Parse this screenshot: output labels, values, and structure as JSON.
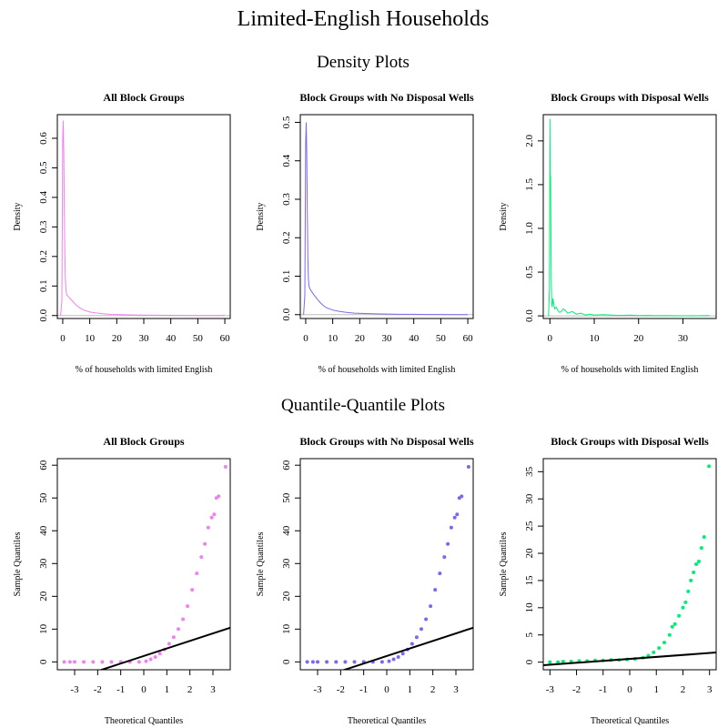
{
  "title": "Limited-English Households",
  "sections": {
    "density": "Density Plots",
    "qq": "Quantile-Quantile Plots"
  },
  "chart_data": [
    {
      "type": "line",
      "kind": "density",
      "title": "All Block Groups",
      "xlabel": "% of households with limited English",
      "ylabel": "Density",
      "color": "#EE82EE",
      "xlim": [
        -2,
        62
      ],
      "ylim": [
        -0.01,
        0.68
      ],
      "xticks": [
        0,
        10,
        20,
        30,
        40,
        50,
        60
      ],
      "yticks": [
        0.0,
        0.1,
        0.2,
        0.3,
        0.4,
        0.5,
        0.6
      ],
      "x": [
        -0.8,
        -0.3,
        0,
        0.2,
        0.4,
        0.6,
        0.8,
        1.0,
        1.2,
        1.5,
        2,
        2.5,
        3,
        4,
        5,
        6,
        7,
        8,
        10,
        12,
        15,
        18,
        22,
        26,
        30,
        35,
        40,
        45,
        50,
        55,
        60
      ],
      "y": [
        0,
        0.05,
        0.6,
        0.66,
        0.55,
        0.35,
        0.2,
        0.12,
        0.085,
        0.07,
        0.065,
        0.06,
        0.055,
        0.045,
        0.035,
        0.028,
        0.022,
        0.018,
        0.012,
        0.009,
        0.006,
        0.004,
        0.003,
        0.002,
        0.0015,
        0.001,
        0.0008,
        0.0005,
        0.0003,
        0.0002,
        0.0001
      ]
    },
    {
      "type": "line",
      "kind": "density",
      "title": "Block Groups with No Disposal Wells",
      "xlabel": "% of households with limited English",
      "ylabel": "Density",
      "color": "#7B68EE",
      "xlim": [
        -2,
        62
      ],
      "ylim": [
        -0.01,
        0.52
      ],
      "xticks": [
        0,
        10,
        20,
        30,
        40,
        50,
        60
      ],
      "yticks": [
        0.0,
        0.1,
        0.2,
        0.3,
        0.4,
        0.5
      ],
      "x": [
        -0.8,
        -0.3,
        0,
        0.2,
        0.4,
        0.6,
        0.8,
        1.0,
        1.2,
        1.5,
        2,
        2.5,
        3,
        4,
        5,
        6,
        7,
        8,
        10,
        12,
        15,
        18,
        22,
        26,
        30,
        35,
        40,
        45,
        50,
        55,
        60
      ],
      "y": [
        0,
        0.05,
        0.45,
        0.5,
        0.42,
        0.27,
        0.15,
        0.095,
        0.075,
        0.068,
        0.062,
        0.057,
        0.052,
        0.043,
        0.034,
        0.027,
        0.021,
        0.017,
        0.012,
        0.009,
        0.006,
        0.004,
        0.003,
        0.002,
        0.0015,
        0.001,
        0.0008,
        0.0005,
        0.0003,
        0.0002,
        0.0001
      ]
    },
    {
      "type": "line",
      "kind": "density",
      "title": "Block Groups with Disposal Wells",
      "xlabel": "% of households with limited English",
      "ylabel": "Density",
      "color": "#00EE76",
      "xlim": [
        -1.5,
        37.5
      ],
      "ylim": [
        -0.03,
        2.3
      ],
      "xticks": [
        0,
        10,
        20,
        30
      ],
      "yticks": [
        0.0,
        0.5,
        1.0,
        1.5,
        2.0
      ],
      "x": [
        -0.3,
        -0.1,
        0,
        0.05,
        0.1,
        0.15,
        0.2,
        0.25,
        0.3,
        0.4,
        0.5,
        0.7,
        0.9,
        1.1,
        1.4,
        1.8,
        2.2,
        2.6,
        3.0,
        3.5,
        4,
        4.5,
        5,
        6,
        7,
        8,
        9,
        10,
        12,
        14,
        16,
        18,
        20,
        22,
        24,
        26,
        30,
        34,
        36
      ],
      "y": [
        0,
        0.3,
        2.25,
        1.6,
        1.45,
        1.6,
        1.2,
        0.8,
        0.4,
        0.15,
        0.1,
        0.2,
        0.12,
        0.08,
        0.1,
        0.06,
        0.04,
        0.05,
        0.08,
        0.06,
        0.03,
        0.04,
        0.05,
        0.02,
        0.03,
        0.01,
        0.02,
        0.01,
        0.015,
        0.01,
        0.005,
        0.01,
        0.003,
        0.005,
        0.002,
        0.003,
        0.001,
        0.002,
        0.004
      ]
    },
    {
      "type": "scatter",
      "kind": "qq",
      "title": "All Block Groups",
      "xlabel": "Theoretical Quantiles",
      "ylabel": "Sample Quantiles",
      "color": "#EE82EE",
      "xlim": [
        -3.75,
        3.75
      ],
      "ylim": [
        -2.4,
        62
      ],
      "xticks": [
        -3,
        -2,
        -1,
        0,
        1,
        2,
        3
      ],
      "yticks": [
        0,
        10,
        20,
        30,
        40,
        50,
        60
      ],
      "qq_line": {
        "intercept": 1.8,
        "slope": 2.3
      },
      "points": [
        [
          -3.45,
          0
        ],
        [
          -3.2,
          0
        ],
        [
          -3.0,
          0
        ],
        [
          -2.6,
          0
        ],
        [
          -2.2,
          0
        ],
        [
          -1.8,
          0
        ],
        [
          -1.4,
          0
        ],
        [
          -1.0,
          0
        ],
        [
          -0.6,
          0
        ],
        [
          -0.2,
          0
        ],
        [
          0.1,
          0.2
        ],
        [
          0.3,
          0.8
        ],
        [
          0.5,
          1.5
        ],
        [
          0.7,
          2.5
        ],
        [
          0.9,
          3.8
        ],
        [
          1.1,
          5.5
        ],
        [
          1.3,
          7.5
        ],
        [
          1.5,
          10
        ],
        [
          1.7,
          13
        ],
        [
          1.9,
          17
        ],
        [
          2.1,
          22
        ],
        [
          2.3,
          27
        ],
        [
          2.5,
          32
        ],
        [
          2.65,
          36
        ],
        [
          2.8,
          41
        ],
        [
          2.95,
          44
        ],
        [
          3.05,
          45
        ],
        [
          3.15,
          50
        ],
        [
          3.25,
          50.5
        ],
        [
          3.55,
          59.5
        ]
      ]
    },
    {
      "type": "scatter",
      "kind": "qq",
      "title": "Block Groups with No Disposal Wells",
      "xlabel": "Theoretical Quantiles",
      "ylabel": "Sample Quantiles",
      "color": "#7B68EE",
      "xlim": [
        -3.75,
        3.75
      ],
      "ylim": [
        -2.4,
        62
      ],
      "xticks": [
        -3,
        -2,
        -1,
        0,
        1,
        2,
        3
      ],
      "yticks": [
        0,
        10,
        20,
        30,
        40,
        50,
        60
      ],
      "qq_line": {
        "intercept": 1.8,
        "slope": 2.3
      },
      "points": [
        [
          -3.45,
          0
        ],
        [
          -3.2,
          0
        ],
        [
          -3.0,
          0
        ],
        [
          -2.6,
          0
        ],
        [
          -2.2,
          0
        ],
        [
          -1.8,
          0
        ],
        [
          -1.4,
          0
        ],
        [
          -1.0,
          0
        ],
        [
          -0.6,
          0
        ],
        [
          -0.2,
          0
        ],
        [
          0.1,
          0.2
        ],
        [
          0.3,
          0.8
        ],
        [
          0.5,
          1.5
        ],
        [
          0.7,
          2.5
        ],
        [
          0.9,
          3.8
        ],
        [
          1.1,
          5.5
        ],
        [
          1.3,
          7.5
        ],
        [
          1.5,
          10
        ],
        [
          1.7,
          13
        ],
        [
          1.9,
          17
        ],
        [
          2.1,
          22
        ],
        [
          2.3,
          27
        ],
        [
          2.5,
          32
        ],
        [
          2.65,
          36
        ],
        [
          2.8,
          41
        ],
        [
          2.95,
          44
        ],
        [
          3.05,
          45
        ],
        [
          3.15,
          50
        ],
        [
          3.25,
          50.5
        ],
        [
          3.55,
          59.5
        ]
      ]
    },
    {
      "type": "scatter",
      "kind": "qq",
      "title": "Block Groups with Disposal Wells",
      "xlabel": "Theoretical Quantiles",
      "ylabel": "Sample Quantiles",
      "color": "#00EE76",
      "xlim": [
        -3.25,
        3.25
      ],
      "ylim": [
        -1.4,
        37.4
      ],
      "xticks": [
        -3,
        -2,
        -1,
        0,
        1,
        2,
        3
      ],
      "yticks": [
        0,
        5,
        10,
        15,
        20,
        25,
        30,
        35
      ],
      "qq_line": {
        "intercept": 0.6,
        "slope": 0.36
      },
      "points": [
        [
          -3.0,
          0
        ],
        [
          -2.7,
          0
        ],
        [
          -2.5,
          0.1
        ],
        [
          -2.2,
          0.1
        ],
        [
          -1.9,
          0.2
        ],
        [
          -1.6,
          0.2
        ],
        [
          -1.3,
          0.3
        ],
        [
          -1.0,
          0.3
        ],
        [
          -0.7,
          0.4
        ],
        [
          -0.4,
          0.4
        ],
        [
          -0.1,
          0.5
        ],
        [
          0.2,
          0.6
        ],
        [
          0.5,
          0.8
        ],
        [
          0.7,
          1.2
        ],
        [
          0.9,
          1.8
        ],
        [
          1.1,
          2.6
        ],
        [
          1.3,
          3.6
        ],
        [
          1.5,
          5
        ],
        [
          1.6,
          6.5
        ],
        [
          1.7,
          7
        ],
        [
          1.85,
          8.5
        ],
        [
          2.0,
          10
        ],
        [
          2.1,
          11
        ],
        [
          2.2,
          13
        ],
        [
          2.3,
          15
        ],
        [
          2.4,
          16.5
        ],
        [
          2.5,
          18
        ],
        [
          2.6,
          18.5
        ],
        [
          2.7,
          21
        ],
        [
          2.8,
          23
        ],
        [
          2.98,
          36
        ]
      ]
    }
  ]
}
